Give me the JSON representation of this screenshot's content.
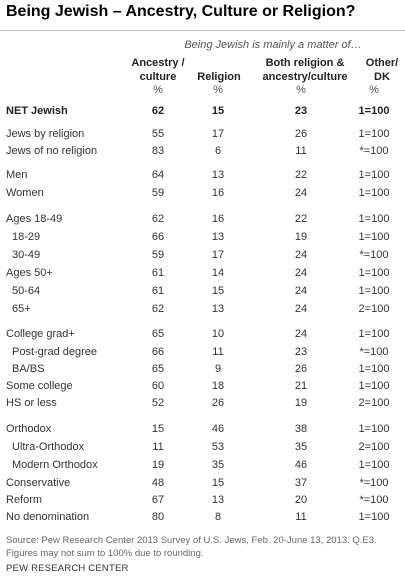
{
  "title": "Being Jewish – Ancestry, Culture or Religion?",
  "subtitle": "Being Jewish is mainly a matter of…",
  "columns": {
    "c1": [
      "Ancestry /",
      "culture"
    ],
    "c2": "Religion",
    "c3": [
      "Both religion &",
      "ancestry/culture"
    ],
    "c4": [
      "Other/",
      "DK"
    ]
  },
  "percent_row": [
    "%",
    "%",
    "%",
    "%"
  ],
  "rows": [
    {
      "label": "NET Jewish",
      "values": [
        "62",
        "15",
        "23",
        "1=100"
      ]
    },
    {
      "label": "Jews by religion",
      "values": [
        "55",
        "17",
        "26",
        "1=100"
      ]
    },
    {
      "label": "Jews of no religion",
      "values": [
        "83",
        "6",
        "11",
        "*=100"
      ]
    },
    {
      "label": "Men",
      "values": [
        "64",
        "13",
        "22",
        "1=100"
      ]
    },
    {
      "label": "Women",
      "values": [
        "59",
        "16",
        "24",
        "1=100"
      ]
    },
    {
      "label": "Ages 18-49",
      "values": [
        "62",
        "16",
        "22",
        "1=100"
      ]
    },
    {
      "label": "18-29",
      "values": [
        "66",
        "13",
        "19",
        "1=100"
      ]
    },
    {
      "label": "30-49",
      "values": [
        "59",
        "17",
        "24",
        "*=100"
      ]
    },
    {
      "label": "Ages 50+",
      "values": [
        "61",
        "14",
        "24",
        "1=100"
      ]
    },
    {
      "label": "50-64",
      "values": [
        "61",
        "15",
        "24",
        "1=100"
      ]
    },
    {
      "label": "65+",
      "values": [
        "62",
        "13",
        "24",
        "2=100"
      ]
    },
    {
      "label": "College grad+",
      "values": [
        "65",
        "10",
        "24",
        "1=100"
      ]
    },
    {
      "label": "Post-grad degree",
      "values": [
        "66",
        "11",
        "23",
        "*=100"
      ]
    },
    {
      "label": "BA/BS",
      "values": [
        "65",
        "9",
        "26",
        "1=100"
      ]
    },
    {
      "label": "Some college",
      "values": [
        "60",
        "18",
        "21",
        "1=100"
      ]
    },
    {
      "label": "HS or less",
      "values": [
        "52",
        "26",
        "19",
        "2=100"
      ]
    },
    {
      "label": "Orthodox",
      "values": [
        "15",
        "46",
        "38",
        "1=100"
      ]
    },
    {
      "label": "Ultra-Orthodox",
      "values": [
        "11",
        "53",
        "35",
        "2=100"
      ]
    },
    {
      "label": "Modern Orthodox",
      "values": [
        "19",
        "35",
        "46",
        "1=100"
      ]
    },
    {
      "label": "Conservative",
      "values": [
        "48",
        "15",
        "37",
        "*=100"
      ]
    },
    {
      "label": "Reform",
      "values": [
        "67",
        "13",
        "20",
        "*=100"
      ]
    },
    {
      "label": "No denomination",
      "values": [
        "80",
        "8",
        "11",
        "1=100"
      ]
    }
  ],
  "source": "Source: Pew Research Center 2013 Survey of U.S. Jews, Feb. 20-June 13, 2013. Q.E3. Figures may not sum to 100% due to rounding.",
  "brand": "PEW RESEARCH CENTER"
}
